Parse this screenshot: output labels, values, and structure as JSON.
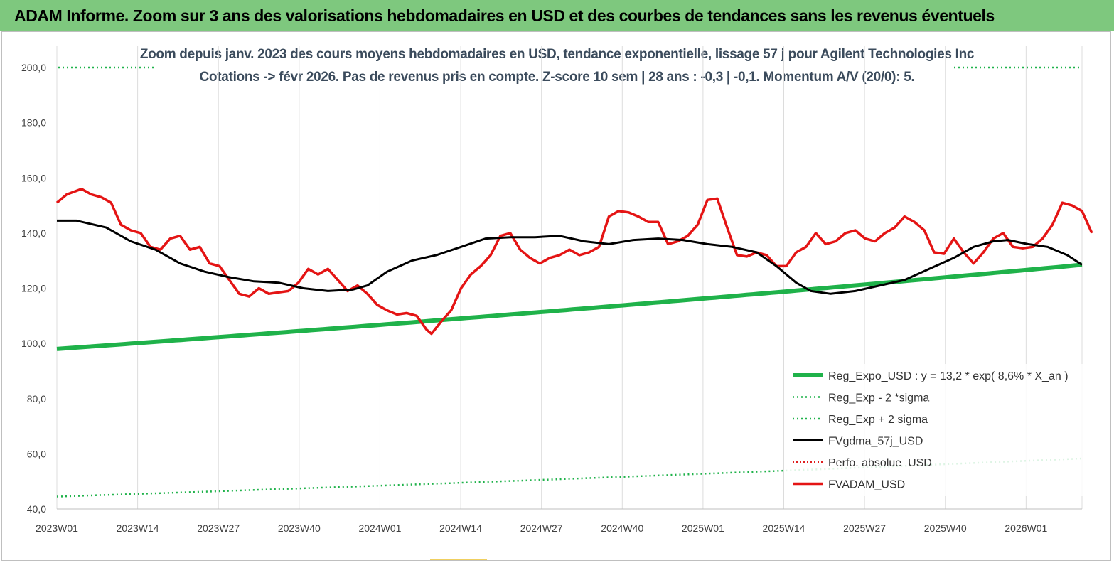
{
  "banner": {
    "title": "ADAM Informe. Zoom sur 3 ans des valorisations hebdomadaires en USD et des courbes de tendances sans les revenus éventuels",
    "color": "#7ec87e"
  },
  "chart_data": {
    "type": "line",
    "title_line1": "Zoom depuis janv. 2023 des cours moyens hebdomadaires en USD, tendance exponentielle, lissage 57 j pour Agilent Technologies Inc",
    "title_line2": "Cotations -> févr 2026.  Pas de revenus pris en compte. Z-score 10 sem | 28 ans : -0,3 | -0,1. Momentum A/V (20/0): 5.",
    "ylim": [
      40,
      200
    ],
    "yticks": [
      "200,0",
      "180,0",
      "160,0",
      "140,0",
      "120,0",
      "100,0",
      "80,0",
      "60,0",
      "40,0"
    ],
    "xticks": [
      "2023W01",
      "2023W14",
      "2023W27",
      "2023W40",
      "2024W01",
      "2024W14",
      "2024W27",
      "2024W40",
      "2025W01",
      "2025W14",
      "2025W27",
      "2025W40",
      "2026W01"
    ],
    "n_weeks": 165,
    "grid": "vertical",
    "legend_position": "bottom-right",
    "series": [
      {
        "name": "Reg_Expo_USD : y = 13,2 * exp( 8,6% *  X_an )",
        "color": "#1fb24a",
        "style": "thick",
        "start": 98.0,
        "end": 128.5
      },
      {
        "name": "Reg_Exp - 2 *sigma",
        "color": "#1fb24a",
        "style": "dotted",
        "start": 44.5,
        "end": 58.3
      },
      {
        "name": "Reg_Exp + 2 sigma",
        "color": "#1fb24a",
        "style": "dotted",
        "start": 200,
        "end": 200
      },
      {
        "name": "FVgdma_57j_USD",
        "color": "#000000",
        "style": "solid",
        "keypoints": [
          [
            0,
            144.5
          ],
          [
            4,
            144.5
          ],
          [
            10,
            142
          ],
          [
            15,
            137
          ],
          [
            20,
            134
          ],
          [
            25,
            129
          ],
          [
            30,
            126
          ],
          [
            35,
            124
          ],
          [
            40,
            122.5
          ],
          [
            45,
            122
          ],
          [
            50,
            120
          ],
          [
            55,
            119
          ],
          [
            60,
            119.5
          ],
          [
            63,
            121
          ],
          [
            67,
            126
          ],
          [
            72,
            130
          ],
          [
            77,
            132
          ],
          [
            82,
            135
          ],
          [
            87,
            138
          ],
          [
            92,
            138.5
          ],
          [
            97,
            138.5
          ],
          [
            102,
            139
          ],
          [
            107,
            137
          ],
          [
            112,
            136
          ],
          [
            117,
            137.5
          ],
          [
            122,
            138
          ],
          [
            127,
            137.5
          ],
          [
            132,
            136
          ],
          [
            137,
            135
          ],
          [
            142,
            133
          ],
          [
            146,
            128
          ],
          [
            150,
            122
          ],
          [
            153,
            119
          ],
          [
            157,
            118
          ],
          [
            162,
            119
          ],
          [
            167,
            121
          ],
          [
            172,
            123
          ],
          [
            177,
            127
          ],
          [
            182,
            131
          ],
          [
            186,
            135
          ],
          [
            190,
            137
          ],
          [
            193,
            137.5
          ],
          [
            197,
            136
          ],
          [
            201,
            135
          ],
          [
            205,
            132
          ],
          [
            208,
            128.5
          ]
        ]
      },
      {
        "name": "Perfo. absolue_USD",
        "color": "#e02020",
        "style": "dotted"
      },
      {
        "name": "FVADAM_USD",
        "color": "#e41414",
        "style": "solid",
        "keypoints": [
          [
            0,
            151
          ],
          [
            2,
            154
          ],
          [
            5,
            156
          ],
          [
            7,
            154
          ],
          [
            9,
            153
          ],
          [
            11,
            151
          ],
          [
            13,
            143
          ],
          [
            15,
            141
          ],
          [
            17,
            140
          ],
          [
            19,
            135
          ],
          [
            21,
            134
          ],
          [
            23,
            138
          ],
          [
            25,
            139
          ],
          [
            27,
            134
          ],
          [
            29,
            135
          ],
          [
            31,
            129
          ],
          [
            33,
            128
          ],
          [
            35,
            123
          ],
          [
            37,
            118
          ],
          [
            39,
            117
          ],
          [
            41,
            120
          ],
          [
            43,
            118
          ],
          [
            45,
            118.5
          ],
          [
            47,
            119
          ],
          [
            49,
            122
          ],
          [
            51,
            127
          ],
          [
            53,
            125
          ],
          [
            55,
            127
          ],
          [
            57,
            123
          ],
          [
            59,
            119
          ],
          [
            61,
            121
          ],
          [
            63,
            118
          ],
          [
            65,
            114
          ],
          [
            67,
            112
          ],
          [
            69,
            110.5
          ],
          [
            71,
            111
          ],
          [
            73,
            110
          ],
          [
            75,
            105
          ],
          [
            76,
            103.5
          ],
          [
            78,
            108
          ],
          [
            80,
            112
          ],
          [
            82,
            120
          ],
          [
            84,
            125
          ],
          [
            86,
            128
          ],
          [
            88,
            132
          ],
          [
            90,
            139
          ],
          [
            92,
            140
          ],
          [
            94,
            134
          ],
          [
            96,
            131
          ],
          [
            98,
            129
          ],
          [
            100,
            131
          ],
          [
            102,
            132
          ],
          [
            104,
            134
          ],
          [
            106,
            132
          ],
          [
            108,
            133
          ],
          [
            110,
            135
          ],
          [
            112,
            146
          ],
          [
            114,
            148
          ],
          [
            116,
            147.5
          ],
          [
            118,
            146
          ],
          [
            120,
            144
          ],
          [
            122,
            144
          ],
          [
            124,
            136
          ],
          [
            126,
            137
          ],
          [
            128,
            139
          ],
          [
            130,
            143
          ],
          [
            132,
            152
          ],
          [
            134,
            152.5
          ],
          [
            136,
            142
          ],
          [
            138,
            132
          ],
          [
            140,
            131.5
          ],
          [
            142,
            133
          ],
          [
            144,
            132
          ],
          [
            146,
            128
          ],
          [
            148,
            128
          ],
          [
            150,
            133
          ],
          [
            152,
            135
          ],
          [
            154,
            140
          ],
          [
            156,
            136
          ],
          [
            158,
            137
          ],
          [
            160,
            140
          ],
          [
            162,
            141
          ],
          [
            164,
            138
          ],
          [
            166,
            137
          ],
          [
            168,
            140
          ],
          [
            170,
            142
          ],
          [
            172,
            146
          ],
          [
            174,
            144
          ],
          [
            176,
            141
          ],
          [
            178,
            133
          ],
          [
            180,
            132.5
          ],
          [
            182,
            138
          ],
          [
            184,
            133
          ],
          [
            186,
            129
          ],
          [
            188,
            133
          ],
          [
            190,
            138
          ],
          [
            192,
            140
          ],
          [
            194,
            135
          ],
          [
            196,
            134.5
          ],
          [
            198,
            135
          ],
          [
            200,
            138
          ],
          [
            202,
            143
          ],
          [
            204,
            151
          ],
          [
            206,
            150
          ],
          [
            208,
            148
          ],
          [
            210,
            140
          ]
        ]
      }
    ]
  }
}
